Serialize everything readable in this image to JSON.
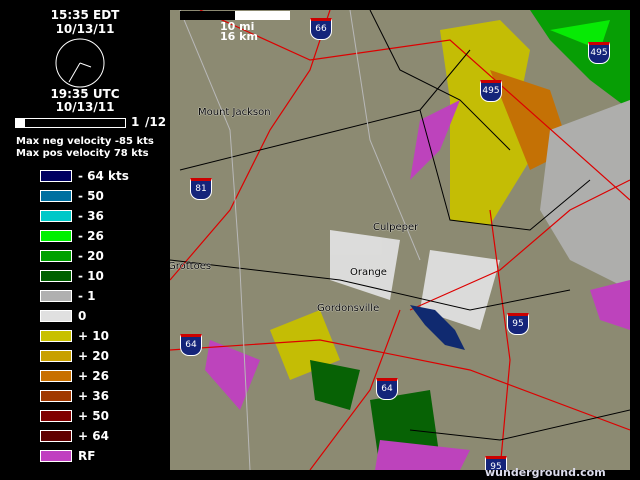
{
  "local_time": "15:35 EDT",
  "local_date": "10/13/11",
  "utc_time": "19:35 UTC",
  "utc_date": "10/13/11",
  "frame": {
    "current": "1",
    "total": "/12",
    "progress": 0.083
  },
  "max_neg": "Max neg velocity -85 kts",
  "max_pos": "Max pos velocity 78 kts",
  "legend": [
    {
      "label": "- 64 kts",
      "color": "#000060"
    },
    {
      "label": "- 50",
      "color": "#0070a0"
    },
    {
      "label": "- 36",
      "color": "#00c8c8"
    },
    {
      "label": "- 26",
      "color": "#00f000"
    },
    {
      "label": "- 20",
      "color": "#00a000"
    },
    {
      "label": "- 10",
      "color": "#006000"
    },
    {
      "label": "- 1",
      "color": "#b0b0b0"
    },
    {
      "label": "0",
      "color": "#e0e0e0"
    },
    {
      "label": "+ 10",
      "color": "#c8c000"
    },
    {
      "label": "+ 20",
      "color": "#c8a000"
    },
    {
      "label": "+ 26",
      "color": "#c87000"
    },
    {
      "label": "+ 36",
      "color": "#a03800"
    },
    {
      "label": "+ 50",
      "color": "#800000"
    },
    {
      "label": "+ 64",
      "color": "#600000"
    },
    {
      "label": "RF",
      "color": "#c040c0"
    }
  ],
  "scale": {
    "mi": "10 mi",
    "km": "16 km"
  },
  "places": [
    "Mount Jackson",
    "Culpeper",
    "Orange",
    "Gordonsville",
    "Grottoes"
  ],
  "shields": [
    "66",
    "81",
    "64",
    "64",
    "95",
    "95",
    "495",
    "495"
  ],
  "brand": "wunderground.com"
}
